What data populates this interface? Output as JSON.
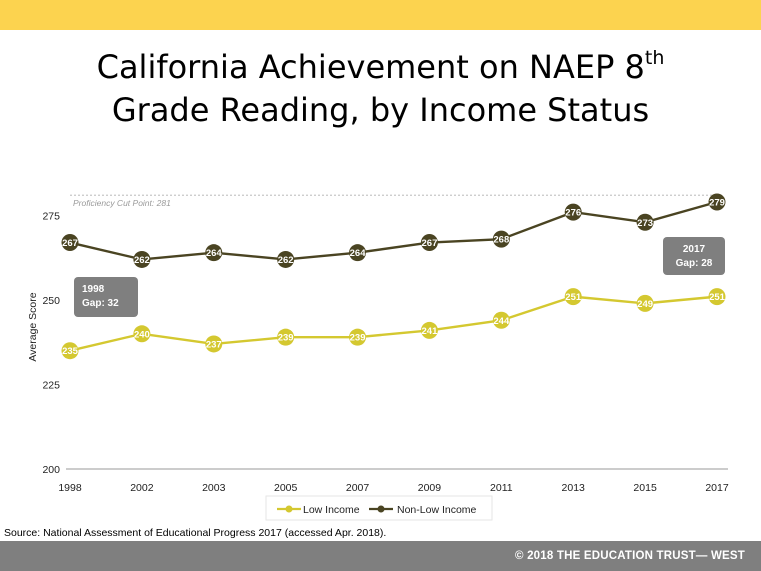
{
  "title_main": "California Achievement on NAEP 8",
  "title_sup": "th",
  "title_line2": "Grade Reading, by Income Status",
  "source": "Source: National Assessment of Educational Progress 2017 (accessed Apr. 2018).",
  "footer": "© 2018 THE EDUCATION TRUST— WEST",
  "colors": {
    "accent_bar": "#fcd34f",
    "footer_bar": "#7f7f7f",
    "low_income": "#d4c830",
    "non_low_income": "#4a4422",
    "callout": "#7f7f7f"
  },
  "chart_data": {
    "type": "line",
    "ylabel": "Average Score",
    "xlabel": "",
    "ylim": [
      200,
      281
    ],
    "yticks": [
      200,
      225,
      250,
      275
    ],
    "x": [
      "1998",
      "2002",
      "2003",
      "2005",
      "2007",
      "2009",
      "2011",
      "2013",
      "2015",
      "2017"
    ],
    "series": [
      {
        "name": "Low Income",
        "values": [
          235,
          240,
          237,
          239,
          239,
          241,
          244,
          251,
          249,
          251
        ]
      },
      {
        "name": "Non-Low Income",
        "values": [
          267,
          262,
          264,
          262,
          264,
          267,
          268,
          276,
          273,
          279
        ]
      }
    ],
    "reference_line": {
      "label": "Proficiency Cut Point: 281",
      "value": 281
    },
    "annotations": [
      {
        "year": "1998",
        "gap": "Gap: 32"
      },
      {
        "year": "2017",
        "gap": "Gap: 28"
      }
    ],
    "legend_position": "bottom",
    "grid": false
  }
}
